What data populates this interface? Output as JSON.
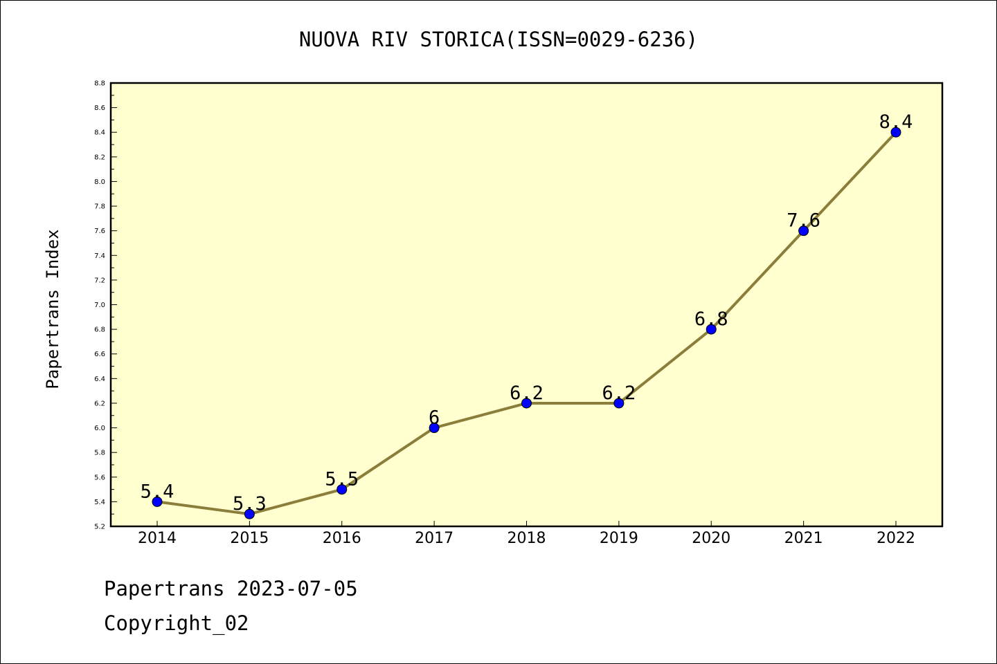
{
  "chart_data": {
    "type": "line",
    "title": "NUOVA RIV STORICA(ISSN=0029-6236)",
    "xlabel": "",
    "ylabel": "Papertrans Index",
    "categories": [
      "2014",
      "2015",
      "2016",
      "2017",
      "2018",
      "2019",
      "2020",
      "2021",
      "2022"
    ],
    "values": [
      5.4,
      5.3,
      5.5,
      6,
      6.2,
      6.2,
      6.8,
      7.6,
      8.4
    ],
    "data_labels": [
      "5.4",
      "5.3",
      "5.5",
      "6",
      "6.2",
      "6.2",
      "6.8",
      "7.6",
      "8.4"
    ],
    "ylim": [
      5.2,
      8.8
    ],
    "yticks": [
      "5.2",
      "5.4",
      "5.6",
      "5.8",
      "6.0",
      "6.2",
      "6.4",
      "6.6",
      "6.8",
      "7.0",
      "7.2",
      "7.4",
      "7.6",
      "7.8",
      "8.0",
      "8.2",
      "8.4",
      "8.6",
      "8.8"
    ],
    "grid": false,
    "colors": {
      "plot_background": "#ffffd0",
      "line": "#8b7d3a",
      "marker": "#0000ff"
    }
  },
  "footer": {
    "date_text": "Papertrans 2023-07-05",
    "copyright_text": "Copyright_02"
  }
}
